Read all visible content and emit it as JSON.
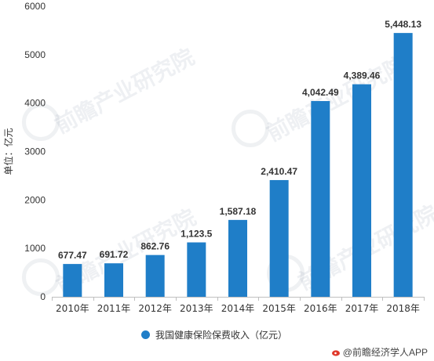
{
  "colors": {
    "bar": "#1f7ec8",
    "axis": "#bfbfbf",
    "text": "#333333"
  },
  "chart_data": {
    "type": "bar",
    "categories": [
      "2010年",
      "2011年",
      "2012年",
      "2013年",
      "2014年",
      "2015年",
      "2016年",
      "2017年",
      "2018年"
    ],
    "values": [
      677.47,
      691.72,
      862.76,
      1123.5,
      1587.18,
      2410.47,
      4042.49,
      4389.46,
      5448.13
    ],
    "data_labels": [
      "677.47",
      "691.72",
      "862.76",
      "1,123.5",
      "1,587.18",
      "2,410.47",
      "4,042.49",
      "4,389.46",
      "5,448.13"
    ],
    "ylabel": "单位：亿元",
    "xlabel": "",
    "ylim": [
      0,
      6000
    ],
    "yticks": [
      0,
      1000,
      2000,
      3000,
      4000,
      5000,
      6000
    ],
    "grid": false,
    "legend_position": "bottom",
    "series": [
      {
        "name": "我国健康保险保费收入（亿元）"
      }
    ]
  },
  "watermark": {
    "text": "前瞻产业研究院"
  },
  "source": {
    "text": "@前瞻经济学人APP",
    "icon": "weibo-icon"
  }
}
